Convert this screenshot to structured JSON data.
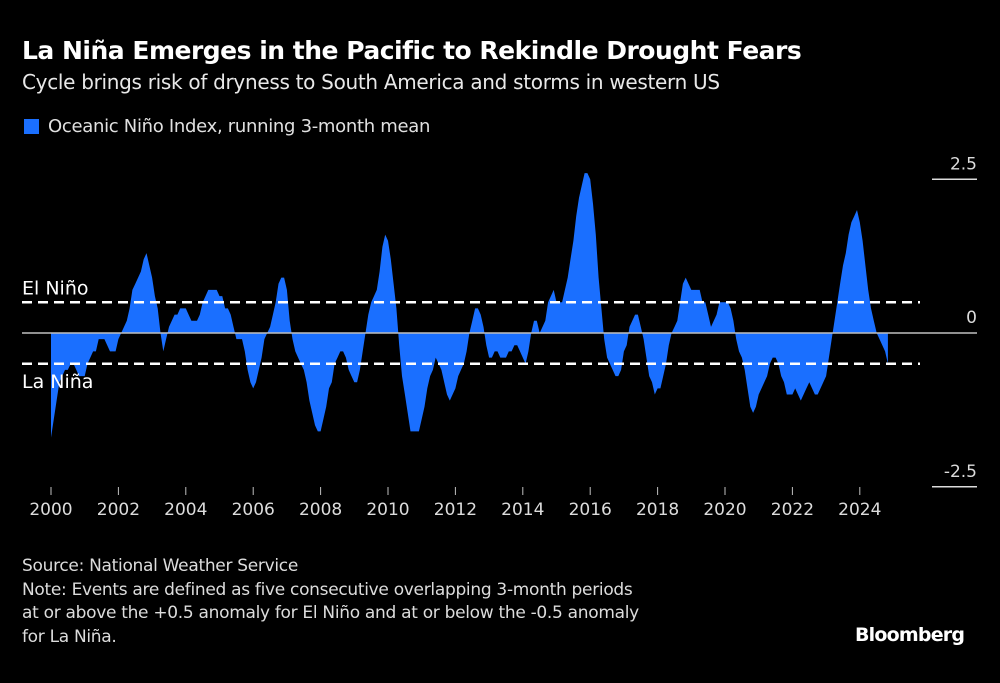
{
  "header": {
    "title": "La Niña Emerges in the Pacific to Rekindle Drought Fears",
    "subtitle": "Cycle brings risk of dryness to South America and storms in western US"
  },
  "legend": {
    "label": "Oceanic Niño Index, running 3-month mean",
    "color": "#1a6fff"
  },
  "footer": {
    "source": "Source: National Weather Service",
    "note_lines": [
      "Note: Events are defined as five consecutive overlapping 3-month periods",
      "at or above the +0.5 anomaly for El Niño and at or below the -0.5 anomaly",
      "for La Niña."
    ],
    "brand": "Bloomberg"
  },
  "chart_data": {
    "type": "area",
    "title": "La Niña Emerges in the Pacific to Rekindle Drought Fears",
    "xlabel": "",
    "ylabel": "",
    "xlim": [
      2000,
      2025
    ],
    "ylim": [
      -2.5,
      2.5
    ],
    "x_ticks": [
      "2000",
      "2002",
      "2004",
      "2006",
      "2008",
      "2010",
      "2012",
      "2014",
      "2016",
      "2018",
      "2020",
      "2022",
      "2024"
    ],
    "y_ticks": [
      "2.5",
      "0",
      "-2.5"
    ],
    "grid": false,
    "legend_position": "top-left",
    "color": "#1a6fff",
    "thresholds": [
      {
        "label": "El Niño",
        "value": 0.5
      },
      {
        "label": "La Niña",
        "value": -0.5
      }
    ],
    "series": [
      {
        "name": "Oceanic Niño Index, running 3-month mean",
        "start_year": 2000,
        "frequency": "monthly",
        "values": [
          -1.7,
          -1.4,
          -1.1,
          -0.8,
          -0.7,
          -0.6,
          -0.6,
          -0.5,
          -0.5,
          -0.6,
          -0.7,
          -0.7,
          -0.7,
          -0.5,
          -0.4,
          -0.3,
          -0.3,
          -0.1,
          -0.1,
          -0.1,
          -0.2,
          -0.3,
          -0.3,
          -0.3,
          -0.1,
          0.0,
          0.1,
          0.2,
          0.4,
          0.7,
          0.8,
          0.9,
          1.0,
          1.2,
          1.3,
          1.1,
          0.9,
          0.6,
          0.4,
          0.0,
          -0.3,
          -0.1,
          0.1,
          0.2,
          0.3,
          0.3,
          0.4,
          0.4,
          0.4,
          0.3,
          0.2,
          0.2,
          0.2,
          0.3,
          0.5,
          0.6,
          0.7,
          0.7,
          0.7,
          0.7,
          0.6,
          0.6,
          0.4,
          0.4,
          0.3,
          0.1,
          -0.1,
          -0.1,
          -0.1,
          -0.3,
          -0.6,
          -0.8,
          -0.9,
          -0.8,
          -0.6,
          -0.4,
          -0.1,
          0.0,
          0.1,
          0.3,
          0.5,
          0.8,
          0.9,
          0.9,
          0.7,
          0.2,
          -0.1,
          -0.3,
          -0.4,
          -0.5,
          -0.6,
          -0.8,
          -1.1,
          -1.3,
          -1.5,
          -1.6,
          -1.6,
          -1.4,
          -1.2,
          -0.9,
          -0.8,
          -0.5,
          -0.4,
          -0.3,
          -0.3,
          -0.4,
          -0.6,
          -0.7,
          -0.8,
          -0.8,
          -0.6,
          -0.3,
          0.0,
          0.3,
          0.5,
          0.6,
          0.7,
          1.0,
          1.4,
          1.6,
          1.5,
          1.2,
          0.8,
          0.4,
          -0.2,
          -0.7,
          -1.0,
          -1.3,
          -1.6,
          -1.6,
          -1.6,
          -1.6,
          -1.4,
          -1.2,
          -0.9,
          -0.7,
          -0.6,
          -0.4,
          -0.5,
          -0.6,
          -0.8,
          -1.0,
          -1.1,
          -1.0,
          -0.9,
          -0.7,
          -0.6,
          -0.5,
          -0.3,
          0.0,
          0.2,
          0.4,
          0.4,
          0.3,
          0.1,
          -0.2,
          -0.4,
          -0.4,
          -0.3,
          -0.3,
          -0.4,
          -0.4,
          -0.4,
          -0.3,
          -0.3,
          -0.2,
          -0.2,
          -0.3,
          -0.4,
          -0.5,
          -0.3,
          0.0,
          0.2,
          0.2,
          0.0,
          0.1,
          0.2,
          0.5,
          0.6,
          0.7,
          0.5,
          0.5,
          0.5,
          0.7,
          0.9,
          1.2,
          1.5,
          1.9,
          2.2,
          2.4,
          2.6,
          2.6,
          2.5,
          2.1,
          1.6,
          0.9,
          0.4,
          -0.1,
          -0.4,
          -0.5,
          -0.6,
          -0.7,
          -0.7,
          -0.6,
          -0.3,
          -0.2,
          0.1,
          0.2,
          0.3,
          0.3,
          0.1,
          -0.1,
          -0.4,
          -0.7,
          -0.8,
          -1.0,
          -0.9,
          -0.9,
          -0.7,
          -0.5,
          -0.2,
          0.0,
          0.1,
          0.2,
          0.5,
          0.8,
          0.9,
          0.8,
          0.7,
          0.7,
          0.7,
          0.7,
          0.5,
          0.5,
          0.3,
          0.1,
          0.2,
          0.3,
          0.5,
          0.5,
          0.5,
          0.5,
          0.4,
          0.2,
          -0.1,
          -0.3,
          -0.4,
          -0.6,
          -0.9,
          -1.2,
          -1.3,
          -1.2,
          -1.0,
          -0.9,
          -0.8,
          -0.7,
          -0.5,
          -0.4,
          -0.4,
          -0.5,
          -0.7,
          -0.8,
          -1.0,
          -1.0,
          -1.0,
          -0.9,
          -1.0,
          -1.1,
          -1.0,
          -0.9,
          -0.8,
          -0.9,
          -1.0,
          -1.0,
          -0.9,
          -0.8,
          -0.7,
          -0.4,
          -0.1,
          0.2,
          0.5,
          0.8,
          1.1,
          1.3,
          1.6,
          1.8,
          1.9,
          2.0,
          1.8,
          1.5,
          1.1,
          0.7,
          0.4,
          0.2,
          0.0,
          -0.1,
          -0.2,
          -0.3,
          -0.5
        ]
      }
    ]
  }
}
